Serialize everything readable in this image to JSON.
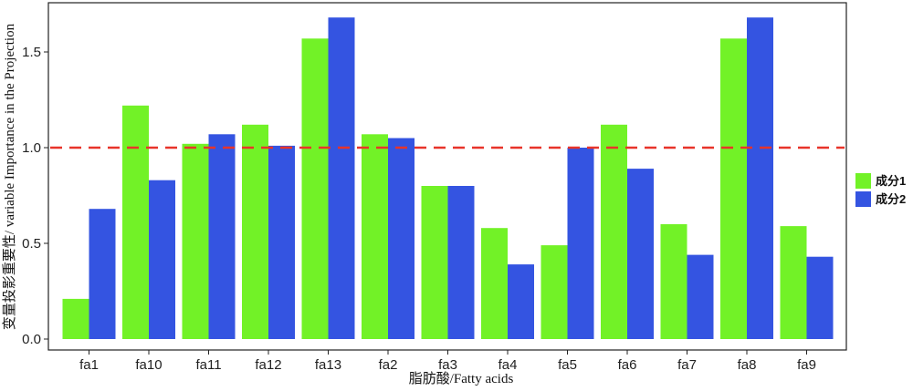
{
  "chart_data": {
    "type": "bar",
    "xlabel": "脂肪酸/Fatty acids",
    "ylabel": "变量投影重要性/ variable Importance in the Projection",
    "ylim": [
      -0.02,
      1.72
    ],
    "yticks": [
      "0.0",
      "0.5",
      "1.0",
      "1.5"
    ],
    "ytick_values": [
      0.0,
      0.5,
      1.0,
      1.5
    ],
    "grid": false,
    "legend_position": "right",
    "reference_line": {
      "value": 1.0,
      "color": "#e8342a",
      "style": "dashed"
    },
    "categories": [
      "fa1",
      "fa10",
      "fa11",
      "fa12",
      "fa13",
      "fa2",
      "fa3",
      "fa4",
      "fa5",
      "fa6",
      "fa7",
      "fa8",
      "fa9"
    ],
    "series": [
      {
        "name": "成分1",
        "color": "#72f227",
        "values": [
          0.21,
          1.22,
          1.02,
          1.12,
          1.57,
          1.07,
          0.8,
          0.58,
          0.49,
          1.12,
          0.6,
          1.57,
          0.59
        ]
      },
      {
        "name": "成分2",
        "color": "#3454e1",
        "values": [
          0.68,
          0.83,
          1.07,
          1.01,
          1.68,
          1.05,
          0.8,
          0.39,
          1.0,
          0.89,
          0.44,
          1.68,
          0.43
        ]
      }
    ]
  }
}
